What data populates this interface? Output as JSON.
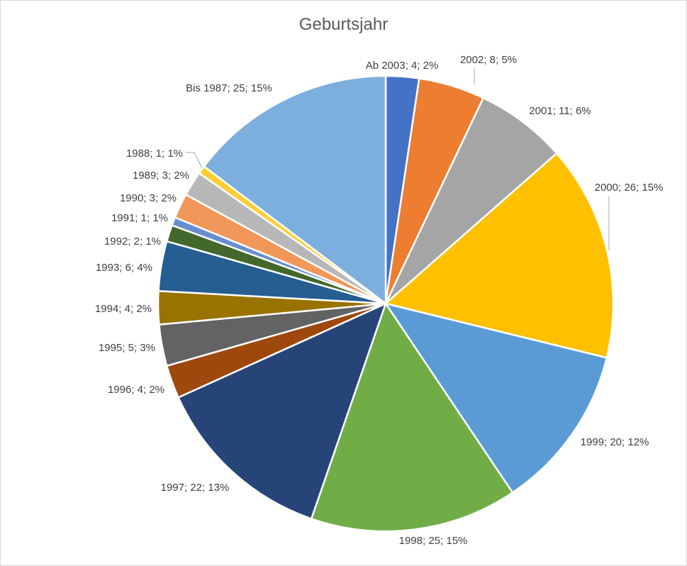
{
  "chart_data": {
    "type": "pie",
    "title": "Geburtsjahr",
    "slices": [
      {
        "category": "Ab 2003",
        "value": 4,
        "percent": "2%",
        "color": "#4472C4"
      },
      {
        "category": "2002",
        "value": 8,
        "percent": "5%",
        "color": "#ED7D31"
      },
      {
        "category": "2001",
        "value": 11,
        "percent": "6%",
        "color": "#A5A5A5"
      },
      {
        "category": "2000",
        "value": 26,
        "percent": "15%",
        "color": "#FFC000"
      },
      {
        "category": "1999",
        "value": 20,
        "percent": "12%",
        "color": "#5B9BD5"
      },
      {
        "category": "1998",
        "value": 25,
        "percent": "15%",
        "color": "#70AD47"
      },
      {
        "category": "1997",
        "value": 22,
        "percent": "13%",
        "color": "#264478"
      },
      {
        "category": "1996",
        "value": 4,
        "percent": "2%",
        "color": "#9E480E"
      },
      {
        "category": "1995",
        "value": 5,
        "percent": "3%",
        "color": "#636363"
      },
      {
        "category": "1994",
        "value": 4,
        "percent": "2%",
        "color": "#997300"
      },
      {
        "category": "1993",
        "value": 6,
        "percent": "4%",
        "color": "#255E91"
      },
      {
        "category": "1992",
        "value": 2,
        "percent": "1%",
        "color": "#43682B"
      },
      {
        "category": "1991",
        "value": 1,
        "percent": "1%",
        "color": "#698ED0"
      },
      {
        "category": "1990",
        "value": 3,
        "percent": "2%",
        "color": "#F1975A"
      },
      {
        "category": "1989",
        "value": 3,
        "percent": "2%",
        "color": "#B7B7B7"
      },
      {
        "category": "1988",
        "value": 1,
        "percent": "1%",
        "color": "#FFCD33"
      },
      {
        "category": "Bis 1987",
        "value": 25,
        "percent": "15%",
        "color": "#7CAFDD"
      }
    ],
    "labels": [
      "Ab 2003; 4; 2%",
      "2002; 8; 5%",
      "2001; 11; 6%",
      "2000; 26; 15%",
      "1999; 20; 12%",
      "1998; 25; 15%",
      "1997; 22; 13%",
      "1996; 4; 2%",
      "1995; 5; 3%",
      "1994; 4; 2%",
      "1993; 6; 4%",
      "1992; 2; 1%",
      "1991; 1; 1%",
      "1990; 3; 2%",
      "1989; 3; 2%",
      "1988; 1; 1%",
      "Bis 1987; 25; 15%"
    ],
    "legend": "none",
    "slice_border_color": "#ffffff"
  }
}
